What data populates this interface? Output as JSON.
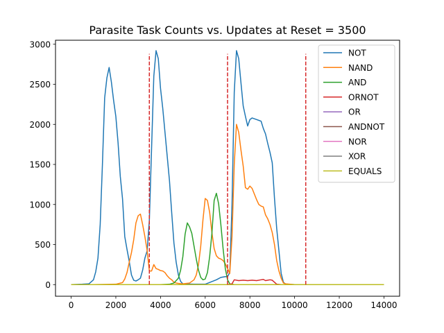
{
  "chart_data": {
    "type": "line",
    "title": "Parasite Task Counts vs. Updates at Reset = 3500",
    "xlabel": "",
    "ylabel": "",
    "xlim": [
      -700,
      14700
    ],
    "ylim": [
      -145,
      3050
    ],
    "xticks": [
      0,
      2000,
      4000,
      6000,
      8000,
      10000,
      12000,
      14000
    ],
    "yticks": [
      0,
      500,
      1000,
      1500,
      2000,
      2500,
      3000
    ],
    "grid": false,
    "legend_position": "top-right",
    "reset_lines": {
      "x": [
        3500,
        7000,
        10500
      ],
      "y_range": [
        0,
        2880
      ],
      "color": "#d62728",
      "style": "dashed"
    },
    "series": [
      {
        "name": "NOT",
        "color": "#1f77b4",
        "points": [
          [
            0,
            0
          ],
          [
            500,
            5
          ],
          [
            800,
            10
          ],
          [
            1000,
            60
          ],
          [
            1100,
            160
          ],
          [
            1200,
            330
          ],
          [
            1300,
            750
          ],
          [
            1400,
            1500
          ],
          [
            1500,
            2330
          ],
          [
            1600,
            2580
          ],
          [
            1700,
            2710
          ],
          [
            1800,
            2530
          ],
          [
            1900,
            2300
          ],
          [
            2000,
            2100
          ],
          [
            2100,
            1770
          ],
          [
            2200,
            1350
          ],
          [
            2300,
            1070
          ],
          [
            2400,
            600
          ],
          [
            2500,
            440
          ],
          [
            2600,
            290
          ],
          [
            2700,
            120
          ],
          [
            2800,
            55
          ],
          [
            2900,
            45
          ],
          [
            3000,
            60
          ],
          [
            3100,
            80
          ],
          [
            3200,
            180
          ],
          [
            3300,
            330
          ],
          [
            3400,
            420
          ],
          [
            3500,
            800
          ],
          [
            3600,
            1700
          ],
          [
            3700,
            2600
          ],
          [
            3800,
            2920
          ],
          [
            3900,
            2820
          ],
          [
            4000,
            2450
          ],
          [
            4100,
            2200
          ],
          [
            4200,
            1900
          ],
          [
            4300,
            1600
          ],
          [
            4400,
            1300
          ],
          [
            4500,
            900
          ],
          [
            4600,
            520
          ],
          [
            4700,
            280
          ],
          [
            4800,
            120
          ],
          [
            4900,
            40
          ],
          [
            5000,
            10
          ],
          [
            5500,
            5
          ],
          [
            6000,
            5
          ],
          [
            6500,
            60
          ],
          [
            6700,
            90
          ],
          [
            6900,
            100
          ],
          [
            7000,
            100
          ],
          [
            7100,
            150
          ],
          [
            7200,
            1000
          ],
          [
            7300,
            2400
          ],
          [
            7400,
            2920
          ],
          [
            7500,
            2820
          ],
          [
            7600,
            2520
          ],
          [
            7700,
            2230
          ],
          [
            7800,
            2100
          ],
          [
            7900,
            1980
          ],
          [
            8000,
            2060
          ],
          [
            8100,
            2080
          ],
          [
            8200,
            2070
          ],
          [
            8300,
            2060
          ],
          [
            8400,
            2050
          ],
          [
            8500,
            2040
          ],
          [
            8600,
            1950
          ],
          [
            8700,
            1880
          ],
          [
            8800,
            1760
          ],
          [
            8900,
            1650
          ],
          [
            9000,
            1520
          ],
          [
            9100,
            1080
          ],
          [
            9200,
            700
          ],
          [
            9300,
            420
          ],
          [
            9400,
            140
          ],
          [
            9500,
            30
          ],
          [
            9600,
            5
          ],
          [
            10000,
            0
          ],
          [
            14000,
            0
          ]
        ]
      },
      {
        "name": "NAND",
        "color": "#ff7f0e",
        "points": [
          [
            0,
            0
          ],
          [
            1000,
            0
          ],
          [
            2000,
            5
          ],
          [
            2300,
            25
          ],
          [
            2400,
            70
          ],
          [
            2500,
            150
          ],
          [
            2600,
            280
          ],
          [
            2700,
            400
          ],
          [
            2800,
            560
          ],
          [
            2900,
            770
          ],
          [
            3000,
            860
          ],
          [
            3100,
            880
          ],
          [
            3200,
            750
          ],
          [
            3300,
            600
          ],
          [
            3400,
            430
          ],
          [
            3500,
            170
          ],
          [
            3600,
            170
          ],
          [
            3700,
            250
          ],
          [
            3800,
            200
          ],
          [
            3900,
            190
          ],
          [
            4000,
            175
          ],
          [
            4100,
            170
          ],
          [
            4200,
            150
          ],
          [
            4300,
            110
          ],
          [
            4400,
            80
          ],
          [
            4500,
            60
          ],
          [
            4600,
            30
          ],
          [
            4700,
            20
          ],
          [
            4800,
            15
          ],
          [
            4900,
            12
          ],
          [
            5000,
            10
          ],
          [
            5300,
            20
          ],
          [
            5500,
            60
          ],
          [
            5600,
            120
          ],
          [
            5700,
            250
          ],
          [
            5800,
            480
          ],
          [
            5900,
            810
          ],
          [
            6000,
            1075
          ],
          [
            6100,
            1050
          ],
          [
            6200,
            900
          ],
          [
            6300,
            650
          ],
          [
            6400,
            450
          ],
          [
            6500,
            360
          ],
          [
            6600,
            330
          ],
          [
            6700,
            320
          ],
          [
            6800,
            300
          ],
          [
            6900,
            260
          ],
          [
            7000,
            200
          ],
          [
            7100,
            140
          ],
          [
            7200,
            600
          ],
          [
            7300,
            1500
          ],
          [
            7400,
            2000
          ],
          [
            7500,
            1900
          ],
          [
            7600,
            1680
          ],
          [
            7700,
            1480
          ],
          [
            7800,
            1210
          ],
          [
            7900,
            1190
          ],
          [
            8000,
            1230
          ],
          [
            8100,
            1200
          ],
          [
            8200,
            1130
          ],
          [
            8300,
            1060
          ],
          [
            8400,
            1000
          ],
          [
            8500,
            980
          ],
          [
            8600,
            970
          ],
          [
            8700,
            870
          ],
          [
            8800,
            820
          ],
          [
            8900,
            750
          ],
          [
            9000,
            650
          ],
          [
            9100,
            500
          ],
          [
            9200,
            300
          ],
          [
            9300,
            170
          ],
          [
            9400,
            80
          ],
          [
            9500,
            20
          ],
          [
            9600,
            10
          ],
          [
            10000,
            0
          ],
          [
            14000,
            0
          ]
        ]
      },
      {
        "name": "AND",
        "color": "#2ca02c",
        "points": [
          [
            0,
            0
          ],
          [
            4000,
            0
          ],
          [
            4400,
            5
          ],
          [
            4600,
            20
          ],
          [
            4800,
            80
          ],
          [
            4900,
            180
          ],
          [
            5000,
            350
          ],
          [
            5100,
            630
          ],
          [
            5200,
            770
          ],
          [
            5300,
            720
          ],
          [
            5400,
            640
          ],
          [
            5500,
            480
          ],
          [
            5600,
            320
          ],
          [
            5700,
            180
          ],
          [
            5800,
            90
          ],
          [
            5900,
            60
          ],
          [
            6000,
            70
          ],
          [
            6100,
            150
          ],
          [
            6200,
            350
          ],
          [
            6300,
            640
          ],
          [
            6400,
            1050
          ],
          [
            6500,
            1140
          ],
          [
            6600,
            1010
          ],
          [
            6700,
            750
          ],
          [
            6800,
            450
          ],
          [
            6900,
            200
          ],
          [
            7000,
            60
          ],
          [
            7100,
            10
          ],
          [
            7300,
            0
          ],
          [
            14000,
            0
          ]
        ]
      },
      {
        "name": "ORNOT",
        "color": "#d62728",
        "points": [
          [
            0,
            0
          ],
          [
            7000,
            0
          ],
          [
            7200,
            10
          ],
          [
            7300,
            60
          ],
          [
            7500,
            50
          ],
          [
            7700,
            55
          ],
          [
            7900,
            50
          ],
          [
            8100,
            55
          ],
          [
            8300,
            50
          ],
          [
            8500,
            60
          ],
          [
            8600,
            65
          ],
          [
            8700,
            50
          ],
          [
            8800,
            55
          ],
          [
            8900,
            60
          ],
          [
            9000,
            55
          ],
          [
            9100,
            30
          ],
          [
            9200,
            5
          ],
          [
            9400,
            0
          ],
          [
            14000,
            0
          ]
        ]
      },
      {
        "name": "OR",
        "color": "#9467bd",
        "points": [
          [
            0,
            0
          ],
          [
            14000,
            0
          ]
        ]
      },
      {
        "name": "ANDNOT",
        "color": "#8c564b",
        "points": [
          [
            0,
            0
          ],
          [
            14000,
            0
          ]
        ]
      },
      {
        "name": "NOR",
        "color": "#e377c2",
        "points": [
          [
            0,
            0
          ],
          [
            14000,
            0
          ]
        ]
      },
      {
        "name": "XOR",
        "color": "#7f7f7f",
        "points": [
          [
            0,
            0
          ],
          [
            14000,
            0
          ]
        ]
      },
      {
        "name": "EQUALS",
        "color": "#bcbd22",
        "points": [
          [
            0,
            0
          ],
          [
            14000,
            0
          ]
        ]
      }
    ]
  }
}
